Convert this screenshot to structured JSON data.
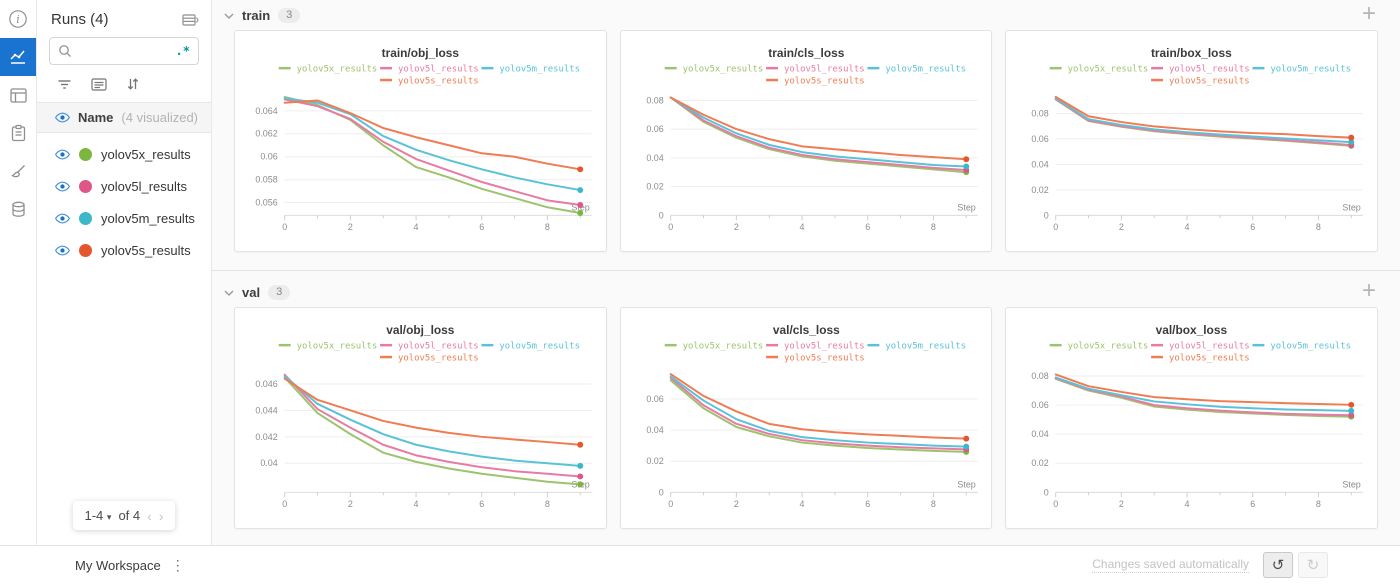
{
  "sidebar": {
    "title": "Runs (4)",
    "search": {
      "placeholder": "",
      "regex_label": ".*"
    },
    "header_row": {
      "label": "Name",
      "suffix": "(4 visualized)"
    },
    "runs": [
      {
        "label": "yolov5x_results",
        "color": "#7cb63f"
      },
      {
        "label": "yolov5l_results",
        "color": "#df5689"
      },
      {
        "label": "yolov5m_results",
        "color": "#3cb8c8"
      },
      {
        "label": "yolov5s_results",
        "color": "#e4572e"
      }
    ],
    "pagination": {
      "range": "1-4",
      "of_label": "of 4"
    }
  },
  "sections": [
    {
      "label": "train",
      "count": "3"
    },
    {
      "label": "val",
      "count": "3"
    }
  ],
  "accent_color": "#1a73ce",
  "chart_data": [
    {
      "type": "line",
      "section": "train",
      "title": "train/obj_loss",
      "xlabel": "Step",
      "x": [
        0,
        1,
        2,
        3,
        4,
        5,
        6,
        7,
        8,
        9
      ],
      "xticks": [
        0,
        2,
        4,
        6,
        8
      ],
      "ylim": [
        0.0549,
        0.0656
      ],
      "yticks": [
        "0.056",
        "0.058",
        "0.06",
        "0.062",
        "0.064"
      ],
      "grid": true,
      "legend_position": "top",
      "series": [
        {
          "name": "yolov5x_results",
          "color": "#9cc36d",
          "marker_color": "#7cb63f",
          "values": [
            0.0652,
            0.0645,
            0.0632,
            0.061,
            0.0591,
            0.0582,
            0.0572,
            0.0564,
            0.0556,
            0.0551
          ]
        },
        {
          "name": "yolov5l_results",
          "color": "#e87ba3",
          "marker_color": "#df5689",
          "values": [
            0.065,
            0.0644,
            0.0633,
            0.0613,
            0.0598,
            0.0588,
            0.0578,
            0.057,
            0.0562,
            0.0558
          ]
        },
        {
          "name": "yolov5m_results",
          "color": "#5ac2d8",
          "marker_color": "#3cb8c8",
          "values": [
            0.0651,
            0.0647,
            0.0637,
            0.0618,
            0.0606,
            0.0597,
            0.0589,
            0.0582,
            0.0576,
            0.0571
          ]
        },
        {
          "name": "yolov5s_results",
          "color": "#ef7c52",
          "marker_color": "#e4572e",
          "values": [
            0.0647,
            0.0649,
            0.0638,
            0.0625,
            0.0617,
            0.061,
            0.0603,
            0.06,
            0.0594,
            0.0589
          ]
        }
      ]
    },
    {
      "type": "line",
      "section": "train",
      "title": "train/cls_loss",
      "xlabel": "Step",
      "x": [
        0,
        1,
        2,
        3,
        4,
        5,
        6,
        7,
        8,
        9
      ],
      "xticks": [
        0,
        2,
        4,
        6,
        8
      ],
      "ylim": [
        0,
        0.0855
      ],
      "yticks": [
        "0",
        "0.02",
        "0.04",
        "0.06",
        "0.08"
      ],
      "grid": true,
      "legend_position": "top",
      "series": [
        {
          "name": "yolov5x_results",
          "color": "#9cc36d",
          "marker_color": "#7cb63f",
          "values": [
            0.082,
            0.065,
            0.054,
            0.046,
            0.041,
            0.038,
            0.036,
            0.034,
            0.032,
            0.03
          ]
        },
        {
          "name": "yolov5l_results",
          "color": "#e87ba3",
          "marker_color": "#df5689",
          "values": [
            0.082,
            0.066,
            0.055,
            0.047,
            0.042,
            0.039,
            0.037,
            0.035,
            0.033,
            0.0315
          ]
        },
        {
          "name": "yolov5m_results",
          "color": "#5ac2d8",
          "marker_color": "#3cb8c8",
          "values": [
            0.082,
            0.068,
            0.057,
            0.049,
            0.044,
            0.041,
            0.039,
            0.037,
            0.035,
            0.034
          ]
        },
        {
          "name": "yolov5s_results",
          "color": "#ef7c52",
          "marker_color": "#e4572e",
          "values": [
            0.082,
            0.07,
            0.06,
            0.053,
            0.048,
            0.046,
            0.044,
            0.042,
            0.0405,
            0.039
          ]
        }
      ]
    },
    {
      "type": "line",
      "section": "train",
      "title": "train/box_loss",
      "xlabel": "Step",
      "x": [
        0,
        1,
        2,
        3,
        4,
        5,
        6,
        7,
        8,
        9
      ],
      "xticks": [
        0,
        2,
        4,
        6,
        8
      ],
      "ylim": [
        0,
        0.0965
      ],
      "yticks": [
        "0",
        "0.02",
        "0.04",
        "0.06",
        "0.08"
      ],
      "grid": true,
      "legend_position": "top",
      "series": [
        {
          "name": "yolov5x_results",
          "color": "#9cc36d",
          "marker_color": "#7cb63f",
          "values": [
            0.091,
            0.074,
            0.0695,
            0.066,
            0.0637,
            0.0618,
            0.0602,
            0.0585,
            0.0566,
            0.0545
          ]
        },
        {
          "name": "yolov5l_results",
          "color": "#e87ba3",
          "marker_color": "#df5689",
          "values": [
            0.0912,
            0.0745,
            0.07,
            0.0665,
            0.0642,
            0.0623,
            0.0608,
            0.059,
            0.0572,
            0.0552
          ]
        },
        {
          "name": "yolov5m_results",
          "color": "#5ac2d8",
          "marker_color": "#3cb8c8",
          "values": [
            0.0918,
            0.0755,
            0.071,
            0.0675,
            0.0652,
            0.0634,
            0.0619,
            0.0603,
            0.0588,
            0.0575
          ]
        },
        {
          "name": "yolov5s_results",
          "color": "#ef7c52",
          "marker_color": "#e4572e",
          "values": [
            0.093,
            0.0778,
            0.0732,
            0.0698,
            0.0676,
            0.0659,
            0.0646,
            0.0637,
            0.0622,
            0.061
          ]
        }
      ]
    },
    {
      "type": "line",
      "section": "val",
      "title": "val/obj_loss",
      "xlabel": "Step",
      "x": [
        0,
        1,
        2,
        3,
        4,
        5,
        6,
        7,
        8,
        9
      ],
      "xticks": [
        0,
        2,
        4,
        6,
        8
      ],
      "ylim": [
        0.0378,
        0.0471
      ],
      "yticks": [
        "0.04",
        "0.042",
        "0.044",
        "0.046"
      ],
      "grid": true,
      "legend_position": "top",
      "series": [
        {
          "name": "yolov5x_results",
          "color": "#9cc36d",
          "marker_color": "#7cb63f",
          "values": [
            0.0465,
            0.0438,
            0.0422,
            0.0408,
            0.0401,
            0.0396,
            0.0392,
            0.0389,
            0.0386,
            0.0384
          ]
        },
        {
          "name": "yolov5l_results",
          "color": "#e87ba3",
          "marker_color": "#df5689",
          "values": [
            0.0467,
            0.0441,
            0.0427,
            0.0414,
            0.0406,
            0.0401,
            0.0397,
            0.0394,
            0.0392,
            0.039
          ]
        },
        {
          "name": "yolov5m_results",
          "color": "#5ac2d8",
          "marker_color": "#3cb8c8",
          "values": [
            0.0466,
            0.0445,
            0.0433,
            0.0422,
            0.0414,
            0.0409,
            0.0405,
            0.0402,
            0.04,
            0.0398
          ]
        },
        {
          "name": "yolov5s_results",
          "color": "#ef7c52",
          "marker_color": "#e4572e",
          "values": [
            0.0464,
            0.0448,
            0.044,
            0.0432,
            0.0427,
            0.0423,
            0.042,
            0.0418,
            0.0416,
            0.0414
          ]
        }
      ]
    },
    {
      "type": "line",
      "section": "val",
      "title": "val/cls_loss",
      "xlabel": "Step",
      "x": [
        0,
        1,
        2,
        3,
        4,
        5,
        6,
        7,
        8,
        9
      ],
      "xticks": [
        0,
        2,
        4,
        6,
        8
      ],
      "ylim": [
        0,
        0.079
      ],
      "yticks": [
        "0",
        "0.02",
        "0.04",
        "0.06"
      ],
      "grid": true,
      "legend_position": "top",
      "series": [
        {
          "name": "yolov5x_results",
          "color": "#9cc36d",
          "marker_color": "#7cb63f",
          "values": [
            0.072,
            0.054,
            0.042,
            0.036,
            0.032,
            0.03,
            0.0285,
            0.0275,
            0.0266,
            0.026
          ]
        },
        {
          "name": "yolov5l_results",
          "color": "#e87ba3",
          "marker_color": "#df5689",
          "values": [
            0.0735,
            0.056,
            0.044,
            0.0375,
            0.0335,
            0.0315,
            0.03,
            0.029,
            0.0282,
            0.0276
          ]
        },
        {
          "name": "yolov5m_results",
          "color": "#5ac2d8",
          "marker_color": "#3cb8c8",
          "values": [
            0.0745,
            0.059,
            0.047,
            0.0395,
            0.0355,
            0.0335,
            0.032,
            0.031,
            0.03,
            0.0294
          ]
        },
        {
          "name": "yolov5s_results",
          "color": "#ef7c52",
          "marker_color": "#e4572e",
          "values": [
            0.076,
            0.062,
            0.052,
            0.044,
            0.0405,
            0.0386,
            0.0373,
            0.0363,
            0.0352,
            0.0345
          ]
        }
      ]
    },
    {
      "type": "line",
      "section": "val",
      "title": "val/box_loss",
      "xlabel": "Step",
      "x": [
        0,
        1,
        2,
        3,
        4,
        5,
        6,
        7,
        8,
        9
      ],
      "xticks": [
        0,
        2,
        4,
        6,
        8
      ],
      "ylim": [
        0,
        0.0845
      ],
      "yticks": [
        "0",
        "0.02",
        "0.04",
        "0.06",
        "0.08"
      ],
      "grid": true,
      "legend_position": "top",
      "series": [
        {
          "name": "yolov5x_results",
          "color": "#9cc36d",
          "marker_color": "#7cb63f",
          "values": [
            0.078,
            0.07,
            0.065,
            0.059,
            0.0568,
            0.0552,
            0.0542,
            0.0532,
            0.0525,
            0.052
          ]
        },
        {
          "name": "yolov5l_results",
          "color": "#e87ba3",
          "marker_color": "#df5689",
          "values": [
            0.0785,
            0.0705,
            0.0658,
            0.06,
            0.0578,
            0.0562,
            0.055,
            0.054,
            0.0534,
            0.053
          ]
        },
        {
          "name": "yolov5m_results",
          "color": "#5ac2d8",
          "marker_color": "#3cb8c8",
          "values": [
            0.079,
            0.0712,
            0.0668,
            0.0625,
            0.0605,
            0.0588,
            0.0578,
            0.057,
            0.0565,
            0.056
          ]
        },
        {
          "name": "yolov5s_results",
          "color": "#ef7c52",
          "marker_color": "#e4572e",
          "values": [
            0.081,
            0.073,
            0.069,
            0.0655,
            0.064,
            0.0627,
            0.062,
            0.0613,
            0.0607,
            0.0602
          ]
        }
      ]
    }
  ],
  "footer": {
    "workspace_label": "My Workspace",
    "status_label": "Changes saved automatically"
  }
}
